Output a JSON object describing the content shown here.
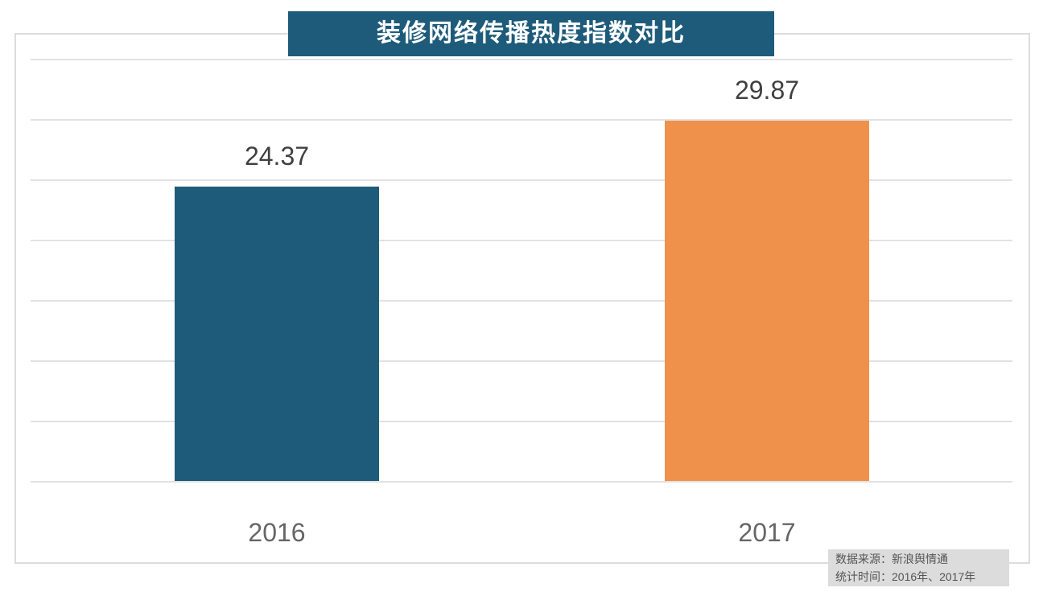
{
  "title": "装修网络传播热度指数对比",
  "chart_data": {
    "type": "bar",
    "categories": [
      "2016",
      "2017"
    ],
    "values": [
      24.37,
      29.87
    ],
    "value_labels": [
      "24.37",
      "29.87"
    ],
    "bar_colors": [
      "#1e5b7b",
      "#ef914a"
    ],
    "title": "装修网络传播热度指数对比",
    "xlabel": "",
    "ylabel": "",
    "ylim": [
      0,
      35
    ],
    "grid_step": 5,
    "grid": "on",
    "legend": "none"
  },
  "source": {
    "line1": "数据来源：新浪舆情通",
    "line2": "统计时间：2016年、2017年"
  },
  "colors": {
    "title_bg": "#1e5b7b",
    "bar_2016": "#1e5b7b",
    "bar_2017": "#ef914a",
    "gridline": "#e2e2e2",
    "frame_border": "#dcdcdc",
    "value_text": "#404040",
    "axis_text": "#666666",
    "source_bg": "#dcdcdc",
    "source_text": "#555555"
  }
}
